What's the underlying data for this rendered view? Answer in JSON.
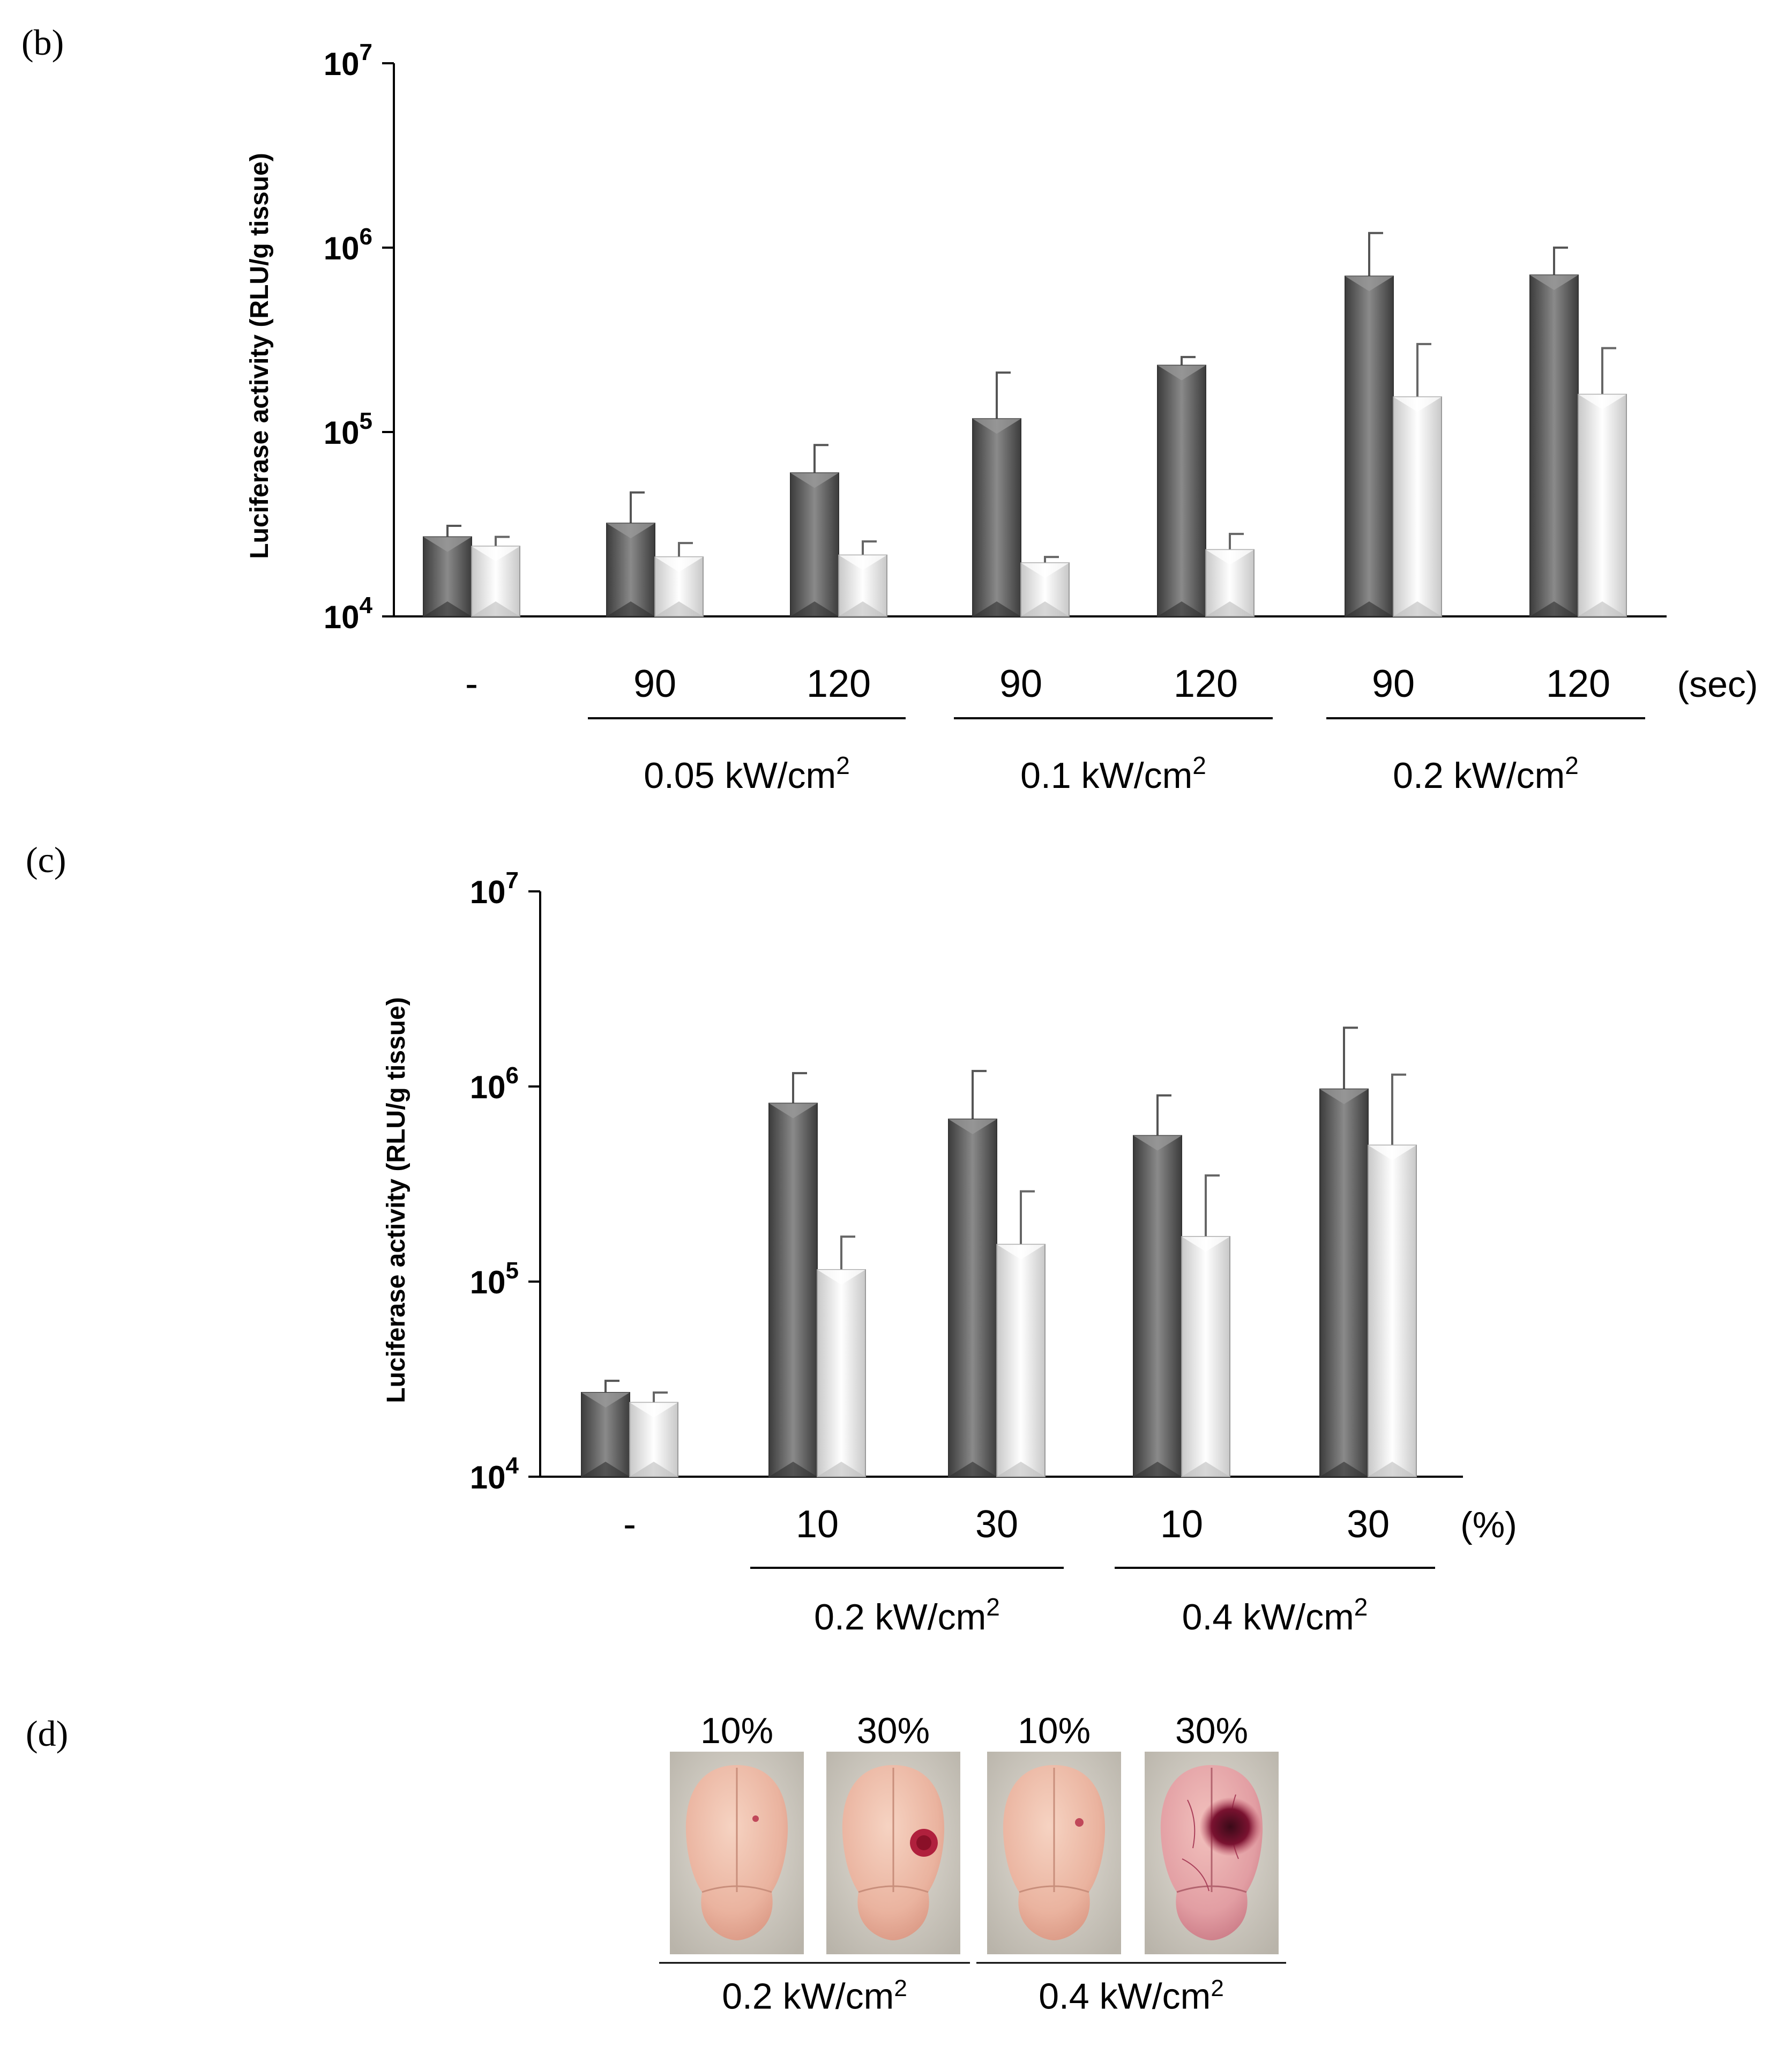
{
  "chart_data": [
    {
      "panel": "(b)",
      "type": "bar",
      "scale": "log",
      "ylabel": "Luciferase activity (RLU/g tissue)",
      "ylim": [
        10000,
        10000000
      ],
      "yticks": [
        {
          "value": 10000,
          "base": "10",
          "exp": "4"
        },
        {
          "value": 100000,
          "base": "10",
          "exp": "5"
        },
        {
          "value": 1000000,
          "base": "10",
          "exp": "6"
        },
        {
          "value": 10000000,
          "base": "10",
          "exp": "7"
        }
      ],
      "categories": [
        "-",
        "90",
        "120",
        "90",
        "120",
        "90",
        "120"
      ],
      "unit_label": "(sec)",
      "groups": [
        {
          "label": "0.05 kW/cm",
          "sup": "2",
          "from": 1,
          "to": 2
        },
        {
          "label": "0.1 kW/cm",
          "sup": "2",
          "from": 3,
          "to": 4
        },
        {
          "label": "0.2 kW/cm",
          "sup": "2",
          "from": 5,
          "to": 6
        }
      ],
      "series": [
        {
          "name": "dark",
          "color": "#555555",
          "values": [
            27000,
            32000,
            60000,
            118000,
            230000,
            700000,
            710000
          ],
          "errors": [
            31000,
            47000,
            85000,
            210000,
            255000,
            1200000,
            1000000
          ]
        },
        {
          "name": "light",
          "color": "#e6e6e6",
          "values": [
            24000,
            21000,
            21500,
            19500,
            23000,
            155000,
            160000
          ],
          "errors": [
            27000,
            25000,
            25500,
            21000,
            28000,
            300000,
            285000
          ]
        }
      ]
    },
    {
      "panel": "(c)",
      "type": "bar",
      "scale": "log",
      "ylabel": "Luciferase activity (RLU/g tissue)",
      "ylim": [
        10000,
        10000000
      ],
      "yticks": [
        {
          "value": 10000,
          "base": "10",
          "exp": "4"
        },
        {
          "value": 100000,
          "base": "10",
          "exp": "5"
        },
        {
          "value": 1000000,
          "base": "10",
          "exp": "6"
        },
        {
          "value": 10000000,
          "base": "10",
          "exp": "7"
        }
      ],
      "categories": [
        "-",
        "10",
        "30",
        "10",
        "30"
      ],
      "unit_label": "(%)",
      "groups": [
        {
          "label": "0.2 kW/cm",
          "sup": "2",
          "from": 1,
          "to": 2
        },
        {
          "label": "0.4 kW/cm",
          "sup": "2",
          "from": 3,
          "to": 4
        }
      ],
      "series": [
        {
          "name": "dark",
          "color": "#555555",
          "values": [
            27000,
            820000,
            680000,
            560000,
            970000
          ],
          "errors": [
            31000,
            1170000,
            1200000,
            900000,
            2000000
          ]
        },
        {
          "name": "light",
          "color": "#e6e6e6",
          "values": [
            24000,
            115000,
            155000,
            170000,
            500000
          ],
          "errors": [
            27000,
            170000,
            290000,
            350000,
            1150000
          ]
        }
      ]
    }
  ],
  "panel_d": {
    "label": "(d)",
    "images": [
      {
        "caption": "10%",
        "name": "brain-0.2-10"
      },
      {
        "caption": "30%",
        "name": "brain-0.2-30"
      },
      {
        "caption": "10%",
        "name": "brain-0.4-10"
      },
      {
        "caption": "30%",
        "name": "brain-0.4-30"
      }
    ],
    "groups": [
      {
        "label": "0.2 kW/cm",
        "sup": "2"
      },
      {
        "label": "0.4 kW/cm",
        "sup": "2"
      }
    ]
  }
}
